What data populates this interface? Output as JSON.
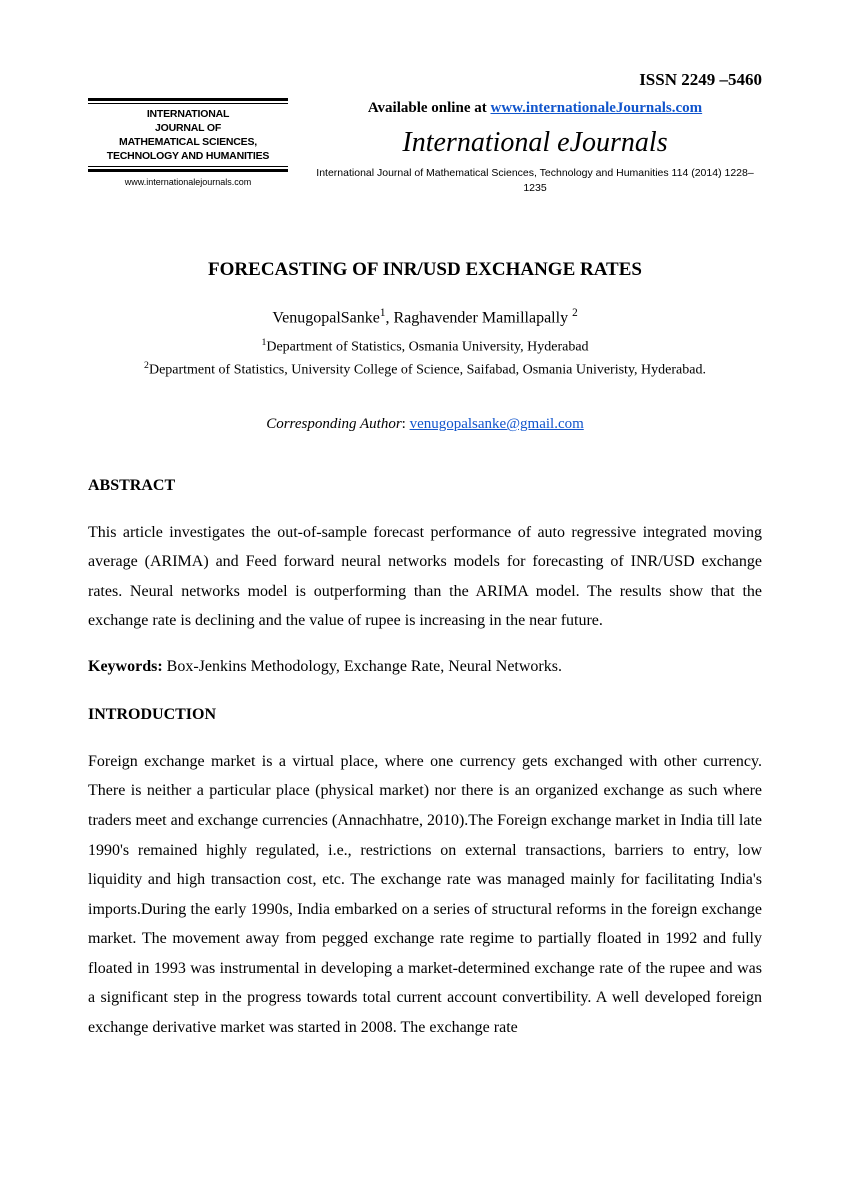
{
  "issn": "ISSN  2249 –5460",
  "logo": {
    "line1": "INTERNATIONAL",
    "line2": "JOURNAL OF",
    "line3": "MATHEMATICAL SCIENCES,",
    "line4": "TECHNOLOGY AND HUMANITIES",
    "url": "www.internationalejournals.com"
  },
  "avail_prefix": "Available online at ",
  "avail_link": "www.internationaleJournals.com",
  "brand": "International eJournals",
  "citation": "International Journal of Mathematical Sciences, Technology and Humanities 114 (2014) 1228–1235",
  "title": "FORECASTING OF INR/USD EXCHANGE RATES",
  "author1": "VenugopalSanke",
  "author1_sup": "1",
  "author2": "Raghavender Mamillapally ",
  "author2_sup": "2",
  "sep": ", ",
  "affil1_sup": "1",
  "affil1": "Department of Statistics, Osmania University, Hyderabad",
  "affil2_sup": "2",
  "affil2": "Department of Statistics, University College of Science, Saifabad, Osmania Univeristy, Hyderabad.",
  "corr_label": "Corresponding Author",
  "corr_sep": ": ",
  "corr_link": "venugopalsanke@gmail.com",
  "abstract_h": "ABSTRACT",
  "abstract_text": "This article investigates the out-of-sample forecast performance of auto regressive integrated moving average (ARIMA) and Feed forward neural networks models for forecasting of INR/USD exchange rates. Neural networks model is outperforming than the ARIMA model. The results show that the exchange rate is declining and the value of rupee is increasing in the near future.",
  "keywords_label": "Keywords:",
  "keywords_text": " Box-Jenkins Methodology, Exchange Rate, Neural Networks.",
  "intro_h": "INTRODUCTION",
  "intro_text": "Foreign exchange market is a virtual place, where one currency gets exchanged with other currency. There is neither a particular place (physical market) nor there is an organized exchange as such where traders meet and exchange currencies (Annachhatre, 2010).The Foreign exchange market in India till late 1990's remained highly regulated, i.e., restrictions on external transactions, barriers to entry, low liquidity and high transaction cost, etc. The exchange rate was managed mainly for facilitating India's imports.During the early 1990s, India embarked on a series of structural reforms in the foreign exchange market. The movement away from pegged exchange rate regime to partially floated in 1992 and fully floated in 1993 was instrumental in developing a market-determined exchange rate of the rupee and was a significant step in the progress towards total current account convertibility. A well developed foreign exchange derivative market was started in 2008. The exchange rate"
}
